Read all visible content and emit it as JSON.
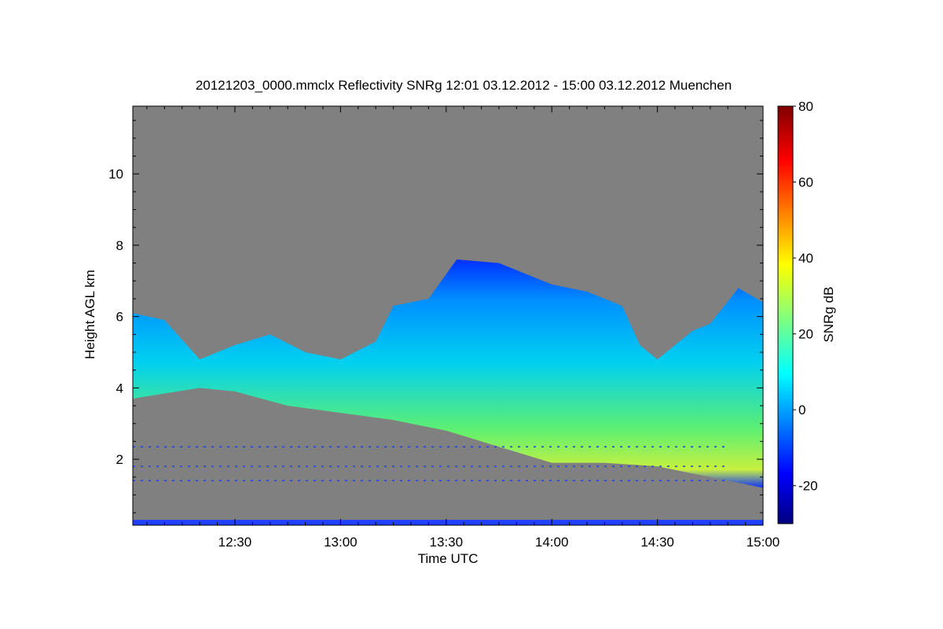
{
  "chart_data": {
    "type": "heatmap",
    "title": "20121203_0000.mmclx Reflectivity SNRg   12:01 03.12.2012 - 15:00 03.12.2012 Muenchen",
    "xlabel": "Time UTC",
    "ylabel": "Height AGL km",
    "colorbar_label": "SNRg dB",
    "xlim": [
      "12:01",
      "15:00"
    ],
    "x_ticks": [
      "12:30",
      "13:00",
      "13:30",
      "14:00",
      "14:30",
      "15:00"
    ],
    "ylim": [
      0.15,
      11.9
    ],
    "y_ticks": [
      2,
      4,
      6,
      8,
      10
    ],
    "zlim": [
      -30,
      80
    ],
    "colorbar_ticks": [
      -20,
      0,
      20,
      40,
      60,
      80
    ],
    "colormap": "jet",
    "no_signal_color": "#808080",
    "cloud_top_km": [
      {
        "t": "12:01",
        "h": 6.1
      },
      {
        "t": "12:10",
        "h": 5.9
      },
      {
        "t": "12:20",
        "h": 4.8
      },
      {
        "t": "12:30",
        "h": 5.2
      },
      {
        "t": "12:40",
        "h": 5.5
      },
      {
        "t": "12:50",
        "h": 5.0
      },
      {
        "t": "13:00",
        "h": 4.8
      },
      {
        "t": "13:10",
        "h": 5.3
      },
      {
        "t": "13:15",
        "h": 6.3
      },
      {
        "t": "13:25",
        "h": 6.5
      },
      {
        "t": "13:33",
        "h": 7.6
      },
      {
        "t": "13:45",
        "h": 7.5
      },
      {
        "t": "14:00",
        "h": 6.9
      },
      {
        "t": "14:10",
        "h": 6.7
      },
      {
        "t": "14:20",
        "h": 6.3
      },
      {
        "t": "14:25",
        "h": 5.2
      },
      {
        "t": "14:30",
        "h": 4.8
      },
      {
        "t": "14:40",
        "h": 5.6
      },
      {
        "t": "14:45",
        "h": 5.8
      },
      {
        "t": "14:53",
        "h": 6.8
      },
      {
        "t": "15:00",
        "h": 6.4
      }
    ],
    "cloud_base_km": [
      {
        "t": "12:01",
        "h": 3.7
      },
      {
        "t": "12:20",
        "h": 4.0
      },
      {
        "t": "12:30",
        "h": 3.9
      },
      {
        "t": "12:45",
        "h": 3.5
      },
      {
        "t": "13:00",
        "h": 3.3
      },
      {
        "t": "13:15",
        "h": 3.1
      },
      {
        "t": "13:30",
        "h": 2.8
      },
      {
        "t": "13:50",
        "h": 2.2
      },
      {
        "t": "14:00",
        "h": 1.9
      },
      {
        "t": "14:15",
        "h": 1.9
      },
      {
        "t": "14:30",
        "h": 1.8
      },
      {
        "t": "14:45",
        "h": 1.5
      },
      {
        "t": "15:00",
        "h": 1.2
      }
    ]
  }
}
